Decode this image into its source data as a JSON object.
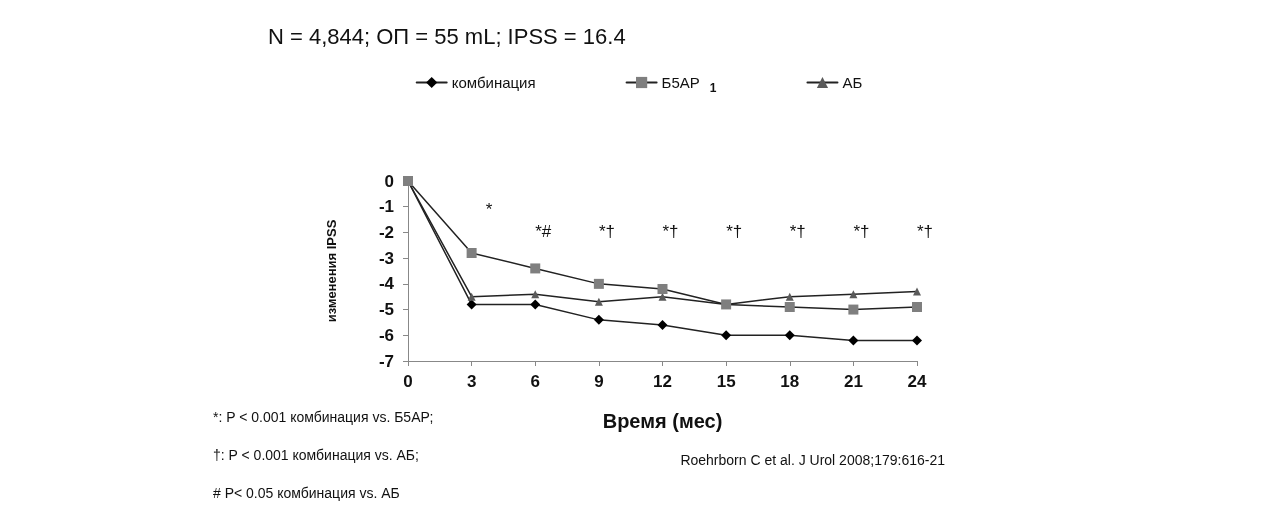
{
  "chart_data": {
    "type": "line",
    "title": "N = 4,844; ОП = 55 mL; IPSS = 16.4",
    "xlabel": "Время (мес)",
    "ylabel": "изменения IPSS",
    "x": [
      0,
      3,
      6,
      9,
      12,
      15,
      18,
      21,
      24
    ],
    "series": [
      {
        "name": "комбинация",
        "color": "#000000",
        "marker": "diamond",
        "values": [
          0,
          -4.8,
          -4.8,
          -5.4,
          -5.6,
          -6.0,
          -6.0,
          -6.2,
          -6.2
        ]
      },
      {
        "name": "Б5АР$_{1}$",
        "color": "#7f7f7f",
        "marker": "square",
        "values": [
          0,
          -2.8,
          -3.4,
          -4.0,
          -4.2,
          -4.8,
          -4.9,
          -5.0,
          -4.9
        ]
      },
      {
        "name": "АБ",
        "color": "#5a5a5a",
        "marker": "triangle",
        "values": [
          0,
          -4.5,
          -4.4,
          -4.7,
          -4.5,
          -4.8,
          -4.5,
          -4.4,
          -4.3
        ]
      }
    ],
    "xlim": [
      0,
      24
    ],
    "xticks": [
      0,
      3,
      6,
      9,
      12,
      15,
      18,
      21,
      24
    ],
    "ylim": [
      -7,
      0
    ],
    "yticks": [
      -7,
      -6,
      -5,
      -4,
      -3,
      -2,
      -1,
      0
    ],
    "grid": false,
    "legend": "top",
    "line_style": "solid",
    "annotations": [
      "*",
      "*#",
      "*†",
      "*†",
      "*†",
      "*†",
      "*†",
      "*†",
      "*: P < 0.001 комбинация vs. Б5АР;",
      "†: P < 0.001 комбинация vs. АБ;",
      "# P< 0.05 комбинация vs. АБ",
      "Roehrborn C et al. J Urol 2008;179:616-21"
    ]
  }
}
